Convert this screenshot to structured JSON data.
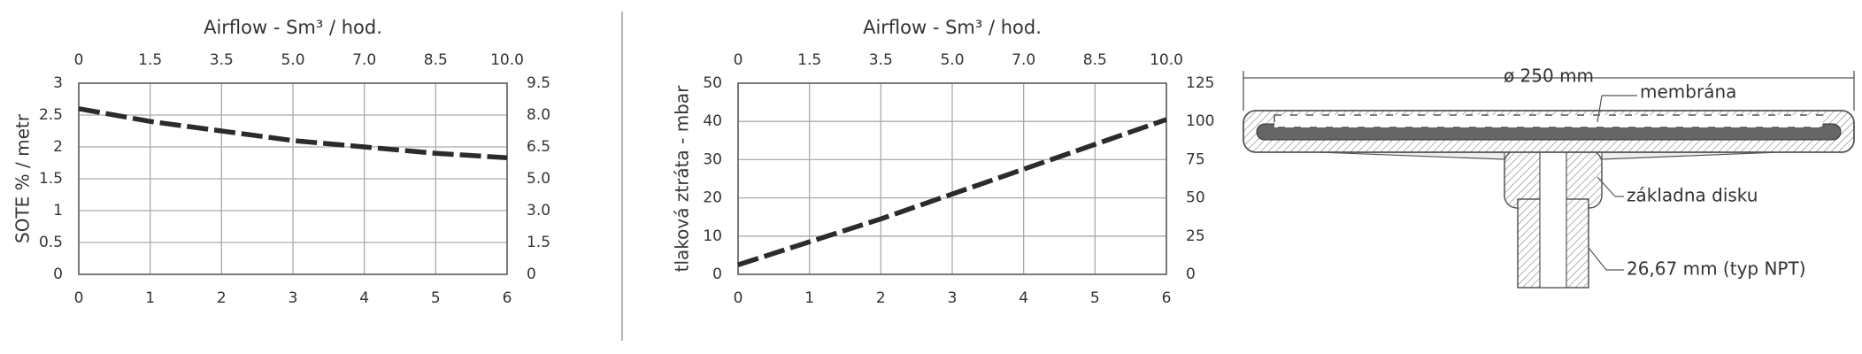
{
  "chart_data": [
    {
      "type": "line",
      "title": "Airflow - Sm³ / hod.",
      "y_label": "SOTE % / metr",
      "xlim": [
        0,
        6
      ],
      "xticks": [
        0,
        1,
        2,
        3,
        4,
        5,
        6
      ],
      "x2ticks": [
        0,
        {
          "value": 1.5,
          "label": "1.5"
        },
        {
          "value": 3.5,
          "label": "3.5"
        },
        {
          "value": 5,
          "label": "5.0"
        },
        {
          "value": 7,
          "label": "7.0"
        },
        {
          "value": 8.5,
          "label": "8.5"
        },
        {
          "value": 10,
          "label": "10.0"
        }
      ],
      "ylim": [
        0,
        3
      ],
      "yticks": [
        0,
        0.5,
        1,
        1.5,
        2,
        2.5,
        3
      ],
      "y2ticks": [
        0,
        {
          "value": 1.5,
          "label": "1.5"
        },
        {
          "value": 3,
          "label": "3.0"
        },
        {
          "value": 5,
          "label": "5.0"
        },
        {
          "value": 6.5,
          "label": "6.5"
        },
        {
          "value": 8,
          "label": "8.0"
        },
        {
          "value": 9.5,
          "label": "9.5"
        }
      ],
      "grid": true,
      "dashed": true,
      "series": [
        {
          "color": "#2b2b2b",
          "x": [
            0,
            1,
            2,
            3,
            4,
            5,
            6
          ],
          "values": [
            2.6,
            2.4,
            2.25,
            2.1,
            2.0,
            1.9,
            1.83
          ]
        }
      ]
    },
    {
      "type": "line",
      "title": "Airflow - Sm³ / hod.",
      "y_label": "tlaková ztráta - mbar",
      "xlim": [
        0,
        6
      ],
      "xticks": [
        0,
        1,
        2,
        3,
        4,
        5,
        6
      ],
      "x2ticks": [
        0,
        {
          "value": 1.5,
          "label": "1.5"
        },
        {
          "value": 3.5,
          "label": "3.5"
        },
        {
          "value": 5,
          "label": "5.0"
        },
        {
          "value": 7,
          "label": "7.0"
        },
        {
          "value": 8.5,
          "label": "8.5"
        },
        {
          "value": 10,
          "label": "10.0"
        }
      ],
      "ylim": [
        0,
        50
      ],
      "yticks": [
        0,
        10,
        20,
        30,
        40,
        50
      ],
      "y2lim": [
        0,
        125
      ],
      "y2ticks": [
        0,
        25,
        50,
        75,
        100,
        125
      ],
      "grid": true,
      "dashed": true,
      "series": [
        {
          "color": "#2b2b2b",
          "x": [
            0,
            1,
            2,
            3,
            4,
            5,
            6
          ],
          "values": [
            2.5,
            8.5,
            14.5,
            21,
            27.5,
            34,
            40.5
          ]
        }
      ]
    }
  ],
  "diagram": {
    "diameter": "ø 250 mm",
    "membrane": "membrána",
    "base": "základna disku",
    "thread": "26,67 mm (typ NPT)"
  }
}
